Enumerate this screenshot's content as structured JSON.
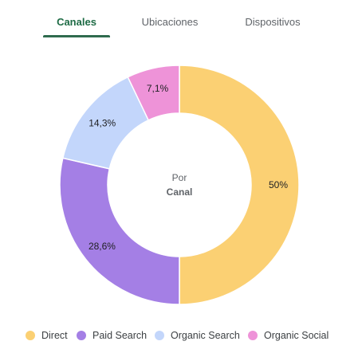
{
  "tabs": [
    {
      "label": "Canales",
      "active": true
    },
    {
      "label": "Ubicaciones",
      "active": false
    },
    {
      "label": "Dispositivos",
      "active": false
    }
  ],
  "center": {
    "line1": "Por",
    "line2": "Canal"
  },
  "chart_data": {
    "type": "pie",
    "donut": true,
    "categories": [
      "Direct",
      "Paid Search",
      "Organic Search",
      "Organic Social"
    ],
    "values": [
      50,
      28.6,
      14.3,
      7.1
    ],
    "labels": [
      "50%",
      "28,6%",
      "14,3%",
      "7,1%"
    ],
    "colors": [
      "#fbd073",
      "#a47fe5",
      "#c3d6fb",
      "#ee93d8"
    ],
    "legend_position": "bottom"
  }
}
